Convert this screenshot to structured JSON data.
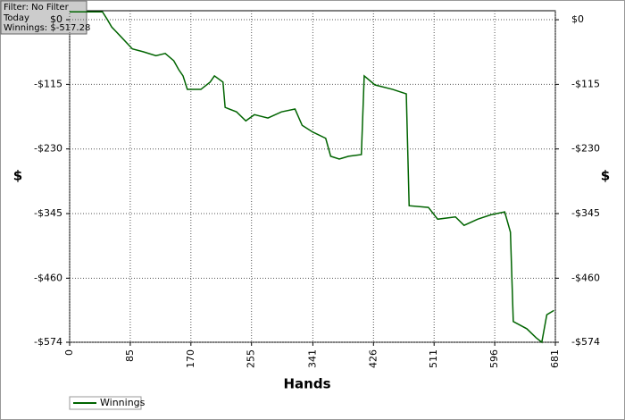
{
  "chart_data": {
    "type": "line",
    "info": [
      "Filter: No Filter",
      "Today",
      "Winnings: $-517.28"
    ],
    "x_label": "Hands",
    "y_label": "$",
    "xlim": [
      0,
      681
    ],
    "xticks": [
      0,
      85,
      170,
      255,
      341,
      426,
      511,
      596,
      681
    ],
    "ylim": [
      -574,
      16
    ],
    "yticks": [
      {
        "value": 0,
        "label": "$0"
      },
      {
        "value": -115,
        "label": "-$115"
      },
      {
        "value": -230,
        "label": "-$230"
      },
      {
        "value": -345,
        "label": "-$345"
      },
      {
        "value": -460,
        "label": "-$460"
      },
      {
        "value": -574,
        "label": "-$574"
      }
    ],
    "grid": true,
    "x": [
      0,
      28,
      46,
      53,
      59,
      71,
      88,
      103,
      121,
      134,
      146,
      153,
      159,
      165,
      184,
      197,
      203,
      215,
      218,
      234,
      247,
      259,
      278,
      297,
      316,
      326,
      341,
      359,
      366,
      378,
      391,
      409,
      413,
      428,
      453,
      472,
      476,
      503,
      516,
      541,
      553,
      572,
      591,
      610,
      618,
      622,
      641,
      654,
      662,
      669,
      679
    ],
    "series": [
      {
        "name": "Winnings",
        "color": "#006400",
        "values": [
          14,
          14,
          14,
          0,
          -13,
          -29,
          -52,
          -57,
          -64,
          -60,
          -73,
          -89,
          -100,
          -124,
          -124,
          -111,
          -100,
          -111,
          -156,
          -164,
          -180,
          -169,
          -175,
          -164,
          -159,
          -188,
          -200,
          -211,
          -243,
          -248,
          -243,
          -240,
          -100,
          -116,
          -124,
          -132,
          -331,
          -334,
          -355,
          -351,
          -366,
          -355,
          -347,
          -342,
          -378,
          -537,
          -550,
          -566,
          -574,
          -525,
          -517.28
        ]
      }
    ]
  }
}
